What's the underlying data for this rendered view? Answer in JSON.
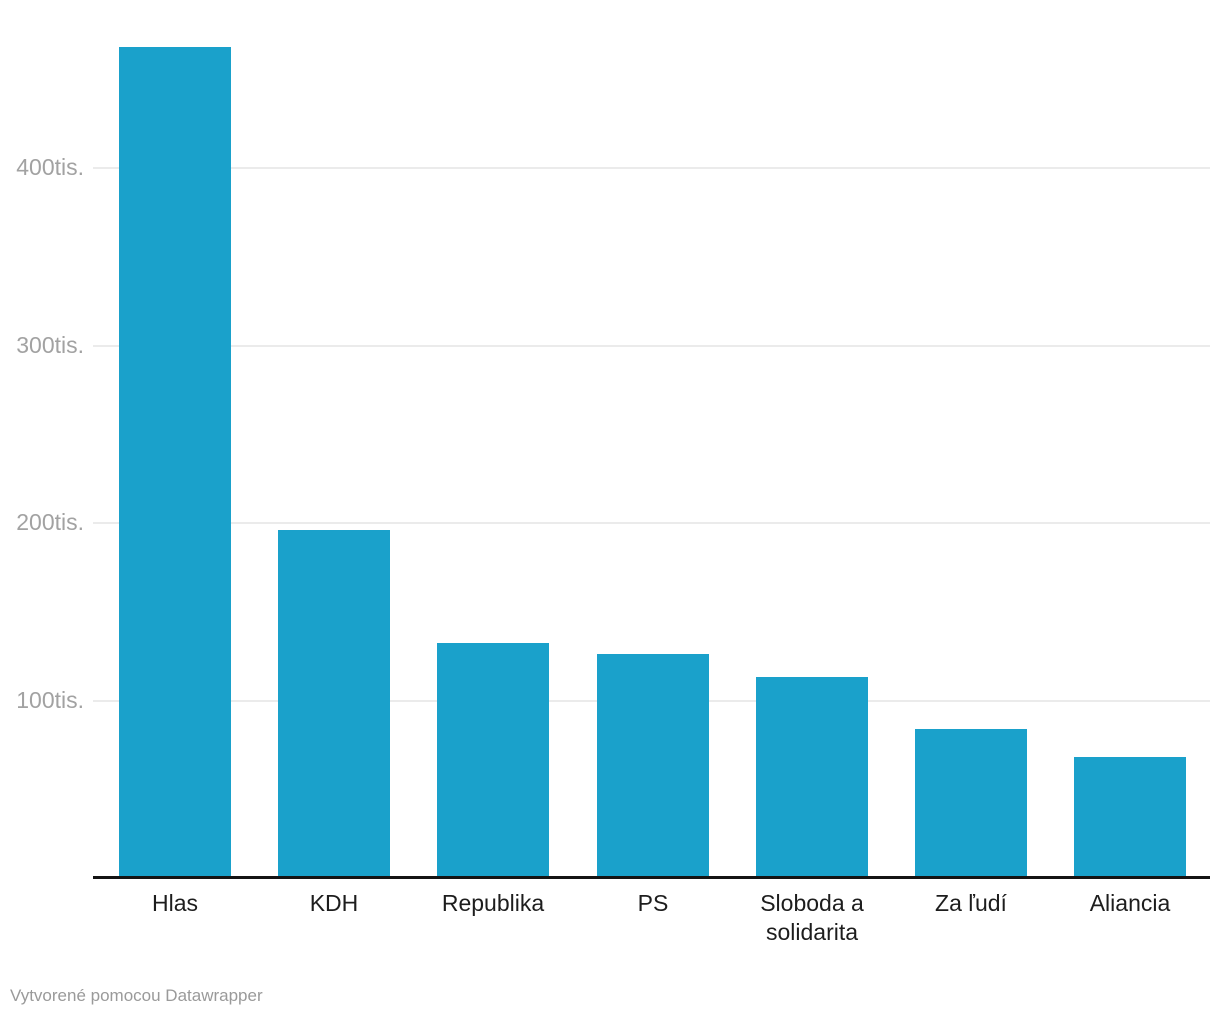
{
  "chart_data": {
    "type": "bar",
    "categories": [
      "Hlas",
      "KDH",
      "Republika",
      "PS",
      "Sloboda a solidarita",
      "Za ľudí",
      "Aliancia"
    ],
    "values": [
      467000,
      195000,
      131000,
      125000,
      112000,
      83000,
      67000
    ],
    "title": "",
    "xlabel": "",
    "ylabel": "",
    "ylim": [
      0,
      494000
    ],
    "yticks": [
      {
        "value": 100000,
        "label": "100tis."
      },
      {
        "value": 200000,
        "label": "200tis."
      },
      {
        "value": 300000,
        "label": "300tis."
      },
      {
        "value": 400000,
        "label": "400tis."
      }
    ],
    "grid": true,
    "legend": false,
    "unit_suffix": "tis."
  },
  "colors": {
    "bar": "#1aa1cb",
    "grid": "#ebebeb",
    "axis": "#141414",
    "tick_label": "#a2a2a2",
    "category_label": "#1d1d1d",
    "credit": "#9a9a9a",
    "background": "#ffffff"
  },
  "footer": {
    "credit": "Vytvorené pomocou Datawrapper"
  }
}
